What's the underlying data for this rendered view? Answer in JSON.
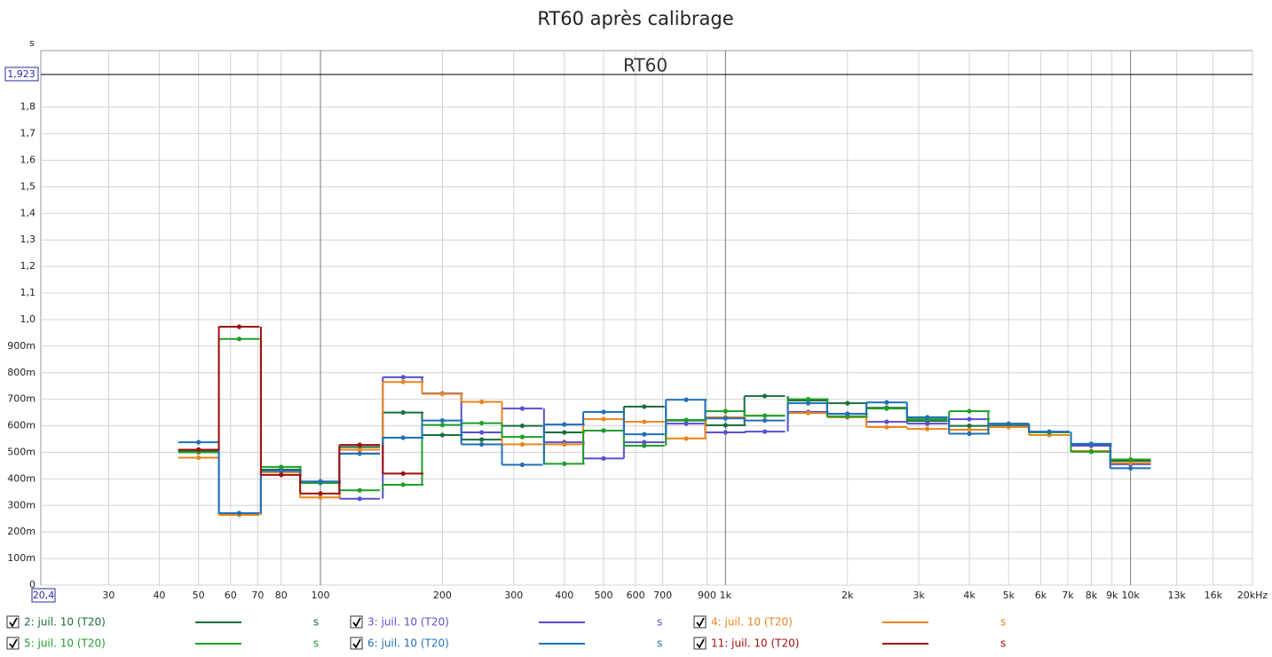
{
  "chart_data": {
    "type": "step",
    "title": "RT60 après calibrage",
    "plot_label": "RT60",
    "y_unit": "s",
    "xscale": "log",
    "grid": true,
    "xlim": [
      20.4,
      20000
    ],
    "ylim": [
      0,
      2.013
    ],
    "cursor": {
      "value": 1.923,
      "label": "1,923"
    },
    "xticks": [
      {
        "value": 20.4,
        "label": "20,4"
      },
      30,
      40,
      50,
      60,
      70,
      80,
      100,
      200,
      300,
      400,
      500,
      600,
      700,
      900,
      {
        "value": 1000,
        "label": "1k"
      },
      {
        "value": 2000,
        "label": "2k"
      },
      {
        "value": 3000,
        "label": "3k"
      },
      {
        "value": 4000,
        "label": "4k"
      },
      {
        "value": 5000,
        "label": "5k"
      },
      {
        "value": 6000,
        "label": "6k"
      },
      {
        "value": 7000,
        "label": "7k"
      },
      {
        "value": 8000,
        "label": "8k"
      },
      {
        "value": 9000,
        "label": "9k"
      },
      {
        "value": 10000,
        "label": "10k"
      },
      {
        "value": 13000,
        "label": "13k"
      },
      {
        "value": 16000,
        "label": "16k"
      },
      {
        "value": 20000,
        "label": "20kHz"
      }
    ],
    "yticks": [
      0,
      {
        "value": 0.1,
        "label": "100m"
      },
      {
        "value": 0.2,
        "label": "200m"
      },
      {
        "value": 0.3,
        "label": "300m"
      },
      {
        "value": 0.4,
        "label": "400m"
      },
      {
        "value": 0.5,
        "label": "500m"
      },
      {
        "value": 0.6,
        "label": "600m"
      },
      {
        "value": 0.7,
        "label": "700m"
      },
      {
        "value": 0.8,
        "label": "800m"
      },
      {
        "value": 0.9,
        "label": "900m"
      },
      {
        "value": 1.0,
        "label": "1,0"
      },
      {
        "value": 1.1,
        "label": "1,1"
      },
      {
        "value": 1.2,
        "label": "1,2"
      },
      {
        "value": 1.3,
        "label": "1,3"
      },
      {
        "value": 1.4,
        "label": "1,4"
      },
      {
        "value": 1.5,
        "label": "1,5"
      },
      {
        "value": 1.6,
        "label": "1,6"
      },
      {
        "value": 1.7,
        "label": "1,7"
      },
      {
        "value": 1.8,
        "label": "1,8"
      }
    ],
    "x": [
      50,
      63,
      80,
      100,
      125,
      160,
      200,
      250,
      315,
      400,
      500,
      630,
      800,
      1000,
      1250,
      1600,
      2000,
      2500,
      3150,
      4000,
      5000,
      6300,
      8000,
      10000
    ],
    "series": [
      {
        "name": "2: juil. 10 (T20)",
        "color": "#1b6e3c",
        "checked": true,
        "values": [
          0.505,
          0.27,
          0.435,
          0.385,
          0.52,
          0.65,
          0.565,
          0.548,
          0.6,
          0.575,
          0.582,
          0.672,
          0.62,
          0.602,
          0.712,
          0.695,
          0.685,
          0.668,
          0.618,
          0.6,
          0.605,
          0.575,
          0.528,
          0.468
        ]
      },
      {
        "name": "3: juil. 10 (T20)",
        "color": "#5a4fd0",
        "checked": true,
        "values": [
          0.51,
          0.27,
          0.43,
          0.39,
          0.325,
          0.783,
          0.722,
          0.575,
          0.665,
          0.538,
          0.477,
          0.538,
          0.608,
          0.575,
          0.578,
          0.652,
          0.645,
          0.615,
          0.608,
          0.625,
          0.6,
          0.575,
          0.525,
          0.455
        ]
      },
      {
        "name": "4: juil. 10 (T20)",
        "color": "#e8861e",
        "checked": true,
        "values": [
          0.48,
          0.264,
          0.425,
          0.33,
          0.51,
          0.765,
          0.72,
          0.69,
          0.53,
          0.53,
          0.625,
          0.615,
          0.552,
          0.632,
          0.638,
          0.648,
          0.632,
          0.595,
          0.588,
          0.585,
          0.595,
          0.565,
          0.505,
          0.46
        ]
      },
      {
        "name": "5: juil. 10 (T20)",
        "color": "#1f9e2a",
        "checked": true,
        "values": [
          0.5,
          0.927,
          0.445,
          0.385,
          0.357,
          0.378,
          0.603,
          0.61,
          0.558,
          0.457,
          0.582,
          0.525,
          0.622,
          0.655,
          0.638,
          0.7,
          0.635,
          0.665,
          0.625,
          0.655,
          0.605,
          0.575,
          0.502,
          0.473
        ]
      },
      {
        "name": "6: juil. 10 (T20)",
        "color": "#1f70b8",
        "checked": true,
        "values": [
          0.538,
          0.271,
          0.43,
          0.39,
          0.495,
          0.555,
          0.62,
          0.53,
          0.453,
          0.605,
          0.652,
          0.568,
          0.698,
          0.628,
          0.62,
          0.685,
          0.645,
          0.688,
          0.632,
          0.57,
          0.608,
          0.578,
          0.532,
          0.44
        ]
      },
      {
        "name": "11: juil. 10 (T20)",
        "color": "#a00d0d",
        "checked": true,
        "values": [
          0.51,
          0.973,
          0.415,
          0.345,
          0.528,
          0.42,
          null,
          null,
          null,
          null,
          null,
          null,
          null,
          null,
          null,
          null,
          null,
          null,
          null,
          null,
          null,
          null,
          null,
          null
        ]
      }
    ]
  }
}
